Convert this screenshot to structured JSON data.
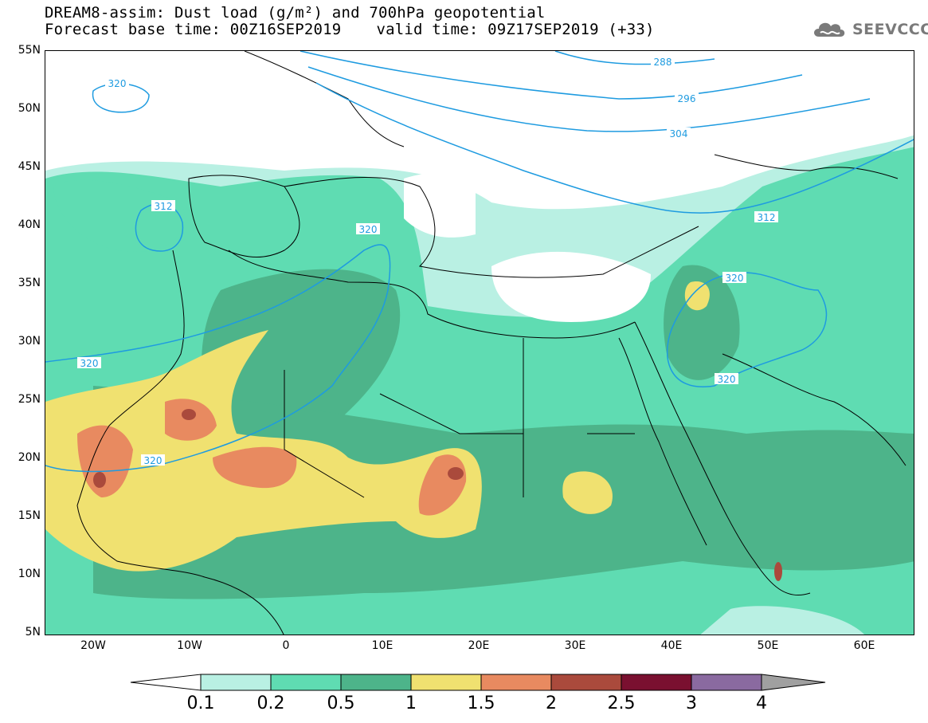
{
  "header": {
    "title_line1": "DREAM8-assim: Dust load (g/m²) and 700hPa geopotential",
    "base_time": "Forecast base time: 00Z16SEP2019",
    "valid_time": "valid time: 09Z17SEP2019 (+33)"
  },
  "logo": {
    "text": "SEEVCCC",
    "icon": "cloud-icon"
  },
  "axes": {
    "lat_labels": [
      "55N",
      "50N",
      "45N",
      "40N",
      "35N",
      "30N",
      "25N",
      "20N",
      "15N",
      "10N",
      "5N"
    ],
    "lon_labels": [
      "20W",
      "10W",
      "0",
      "10E",
      "20E",
      "30E",
      "40E",
      "50E",
      "60E"
    ]
  },
  "contours": {
    "labels": [
      "288",
      "296",
      "304",
      "312",
      "320",
      "320",
      "320",
      "320",
      "320",
      "320",
      "312"
    ]
  },
  "colorbar": {
    "labels": [
      "0.1",
      "0.2",
      "0.5",
      "1",
      "1.5",
      "2",
      "2.5",
      "3",
      "4"
    ],
    "colors": [
      "#ffffff",
      "#b9f0e3",
      "#5fdcb2",
      "#4db48a",
      "#f0e170",
      "#e88a60",
      "#aa4a3c",
      "#7a1030",
      "#8a6aa0",
      "#a0a0a0"
    ]
  }
}
